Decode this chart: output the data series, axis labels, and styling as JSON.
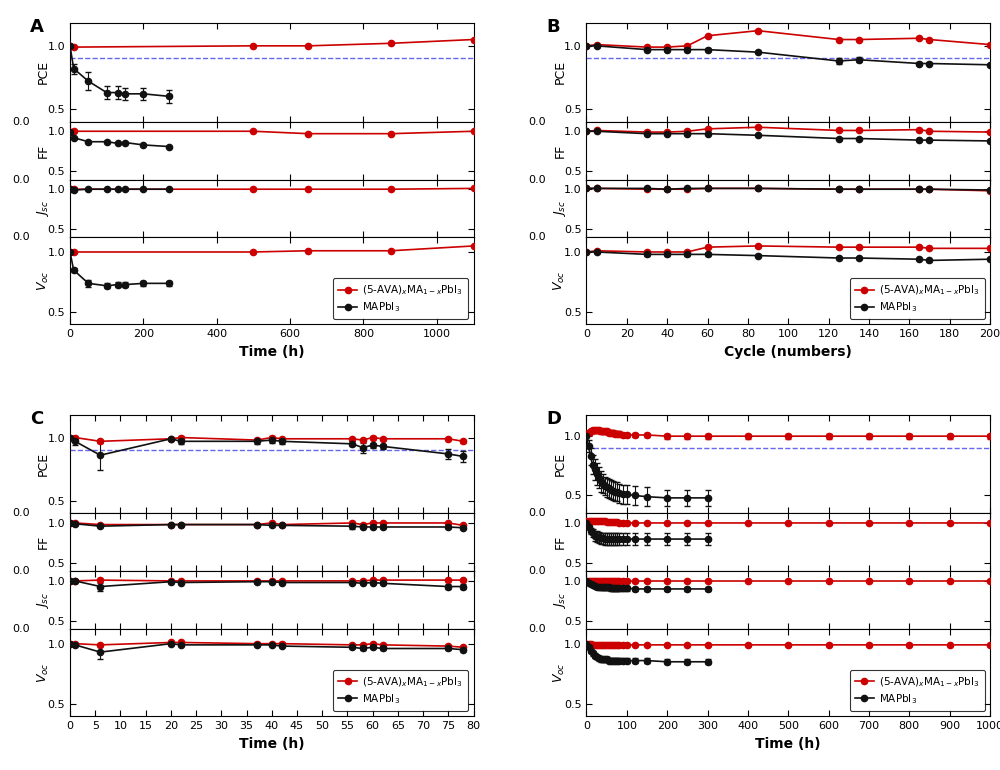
{
  "panel_A": {
    "xlabel": "Time (h)",
    "xlim": [
      0,
      1100
    ],
    "xticks": [
      0,
      200,
      400,
      600,
      800,
      1000
    ],
    "red_PCE_x": [
      0,
      10,
      500,
      650,
      875,
      1100
    ],
    "red_PCE_y": [
      1.0,
      0.99,
      1.0,
      1.0,
      1.02,
      1.05
    ],
    "black_PCE_x": [
      0,
      10,
      50,
      100,
      130,
      150,
      200,
      270
    ],
    "black_PCE_y": [
      1.0,
      0.82,
      0.72,
      0.63,
      0.63,
      0.62,
      0.62,
      0.6
    ],
    "black_PCE_err": [
      0.0,
      0.04,
      0.07,
      0.05,
      0.05,
      0.05,
      0.05,
      0.05
    ],
    "red_FF_x": [
      0,
      10,
      500,
      650,
      875,
      1100
    ],
    "red_FF_y": [
      0.99,
      1.0,
      1.0,
      0.97,
      0.97,
      1.0
    ],
    "red_FF_err": [
      0.01,
      0.01,
      0.0,
      0.0,
      0.0,
      0.0
    ],
    "black_FF_x": [
      0,
      10,
      50,
      100,
      130,
      150,
      200,
      270
    ],
    "black_FF_y": [
      0.99,
      0.92,
      0.87,
      0.87,
      0.85,
      0.86,
      0.83,
      0.81
    ],
    "black_FF_err": [
      0.01,
      0.01,
      0.01,
      0.01,
      0.01,
      0.01,
      0.01,
      0.01
    ],
    "red_Jsc_x": [
      0,
      10,
      500,
      650,
      875,
      1100
    ],
    "red_Jsc_y": [
      1.0,
      1.0,
      1.0,
      1.0,
      1.0,
      1.01
    ],
    "black_Jsc_x": [
      0,
      10,
      50,
      100,
      130,
      150,
      200,
      270
    ],
    "black_Jsc_y": [
      1.0,
      0.99,
      1.0,
      1.0,
      1.0,
      1.0,
      1.0,
      1.0
    ],
    "black_Jsc_err": [
      0.005,
      0.005,
      0.005,
      0.005,
      0.005,
      0.005,
      0.005,
      0.005
    ],
    "red_Voc_x": [
      0,
      10,
      500,
      650,
      875,
      1100
    ],
    "red_Voc_y": [
      1.0,
      1.0,
      1.0,
      1.01,
      1.01,
      1.05
    ],
    "black_Voc_x": [
      0,
      10,
      50,
      100,
      130,
      150,
      200,
      270
    ],
    "black_Voc_y": [
      1.0,
      0.85,
      0.74,
      0.72,
      0.73,
      0.73,
      0.74,
      0.74
    ],
    "black_Voc_err": [
      0.01,
      0.02,
      0.03,
      0.02,
      0.02,
      0.02,
      0.02,
      0.02
    ]
  },
  "panel_B": {
    "xlabel": "Cycle (numbers)",
    "xlim": [
      0,
      200
    ],
    "xticks": [
      0,
      20,
      40,
      60,
      80,
      100,
      120,
      140,
      160,
      180,
      200
    ],
    "red_PCE_x": [
      0,
      5,
      30,
      40,
      50,
      60,
      85,
      125,
      135,
      165,
      170,
      200
    ],
    "red_PCE_y": [
      1.0,
      1.01,
      0.99,
      0.99,
      1.0,
      1.08,
      1.12,
      1.05,
      1.05,
      1.06,
      1.05,
      1.01
    ],
    "black_PCE_x": [
      0,
      5,
      30,
      40,
      50,
      60,
      85,
      125,
      135,
      165,
      170,
      200
    ],
    "black_PCE_y": [
      1.0,
      1.0,
      0.97,
      0.97,
      0.97,
      0.97,
      0.95,
      0.88,
      0.89,
      0.86,
      0.86,
      0.85
    ],
    "black_PCE_err": [
      0.01,
      0.01,
      0.01,
      0.01,
      0.01,
      0.01,
      0.01,
      0.02,
      0.02,
      0.01,
      0.01,
      0.01
    ],
    "red_FF_x": [
      0,
      5,
      30,
      40,
      50,
      60,
      85,
      125,
      135,
      165,
      170,
      200
    ],
    "red_FF_y": [
      1.0,
      1.01,
      0.99,
      0.99,
      1.0,
      1.03,
      1.05,
      1.01,
      1.01,
      1.02,
      1.0,
      0.99
    ],
    "black_FF_x": [
      0,
      5,
      30,
      40,
      50,
      60,
      85,
      125,
      135,
      165,
      170,
      200
    ],
    "black_FF_y": [
      1.0,
      1.0,
      0.97,
      0.97,
      0.97,
      0.97,
      0.95,
      0.91,
      0.91,
      0.89,
      0.89,
      0.88
    ],
    "black_FF_err": [
      0.01,
      0.01,
      0.01,
      0.01,
      0.01,
      0.01,
      0.01,
      0.01,
      0.01,
      0.01,
      0.01,
      0.01
    ],
    "red_Jsc_x": [
      0,
      5,
      30,
      40,
      50,
      60,
      85,
      125,
      135,
      165,
      170,
      200
    ],
    "red_Jsc_y": [
      1.01,
      1.01,
      1.0,
      1.0,
      1.0,
      1.01,
      1.01,
      1.0,
      1.0,
      1.0,
      1.0,
      0.98
    ],
    "black_Jsc_x": [
      0,
      5,
      30,
      40,
      50,
      60,
      85,
      125,
      135,
      165,
      170,
      200
    ],
    "black_Jsc_y": [
      1.01,
      1.01,
      1.01,
      1.0,
      1.01,
      1.01,
      1.01,
      1.0,
      1.0,
      1.0,
      1.0,
      0.99
    ],
    "black_Jsc_err": [
      0.005,
      0.005,
      0.005,
      0.005,
      0.005,
      0.005,
      0.005,
      0.005,
      0.005,
      0.005,
      0.005,
      0.005
    ],
    "red_Voc_x": [
      0,
      5,
      30,
      40,
      50,
      60,
      85,
      125,
      135,
      165,
      170,
      200
    ],
    "red_Voc_y": [
      1.0,
      1.01,
      1.0,
      1.0,
      1.0,
      1.04,
      1.05,
      1.04,
      1.04,
      1.04,
      1.03,
      1.03
    ],
    "black_Voc_x": [
      0,
      5,
      30,
      40,
      50,
      60,
      85,
      125,
      135,
      165,
      170,
      200
    ],
    "black_Voc_y": [
      1.0,
      1.0,
      0.98,
      0.98,
      0.98,
      0.98,
      0.97,
      0.95,
      0.95,
      0.94,
      0.93,
      0.94
    ],
    "black_Voc_err": [
      0.01,
      0.01,
      0.01,
      0.01,
      0.01,
      0.01,
      0.01,
      0.01,
      0.01,
      0.01,
      0.01,
      0.01
    ]
  },
  "panel_C": {
    "xlabel": "Time (h)",
    "xlim": [
      0,
      80
    ],
    "xticks": [
      0,
      5,
      10,
      15,
      20,
      25,
      30,
      35,
      40,
      45,
      50,
      55,
      60,
      65,
      70,
      75,
      80
    ],
    "red_PCE_x": [
      0,
      1,
      6,
      20,
      22,
      37,
      40,
      42,
      56,
      58,
      60,
      62,
      75,
      78
    ],
    "red_PCE_y": [
      1.0,
      1.0,
      0.97,
      0.99,
      1.0,
      0.98,
      1.0,
      0.99,
      0.99,
      0.98,
      1.0,
      0.99,
      0.99,
      0.97
    ],
    "red_PCE_err": [
      0.01,
      0.01,
      0.01,
      0.01,
      0.01,
      0.01,
      0.01,
      0.01,
      0.01,
      0.01,
      0.01,
      0.01,
      0.01,
      0.01
    ],
    "black_PCE_x": [
      0,
      1,
      6,
      20,
      22,
      37,
      40,
      42,
      56,
      58,
      60,
      62,
      75,
      78
    ],
    "black_PCE_y": [
      1.0,
      0.97,
      0.86,
      0.99,
      0.97,
      0.97,
      0.98,
      0.97,
      0.95,
      0.92,
      0.94,
      0.93,
      0.87,
      0.85
    ],
    "black_PCE_err": [
      0.01,
      0.03,
      0.12,
      0.01,
      0.02,
      0.02,
      0.02,
      0.02,
      0.02,
      0.04,
      0.02,
      0.02,
      0.04,
      0.04
    ],
    "red_FF_x": [
      0,
      1,
      6,
      20,
      22,
      37,
      40,
      42,
      56,
      58,
      60,
      62,
      75,
      78
    ],
    "red_FF_y": [
      1.0,
      1.0,
      0.98,
      0.98,
      0.98,
      0.98,
      1.0,
      0.98,
      1.0,
      0.98,
      1.0,
      1.0,
      1.0,
      0.97
    ],
    "red_FF_err": [
      0.005,
      0.005,
      0.01,
      0.01,
      0.01,
      0.01,
      0.005,
      0.01,
      0.005,
      0.01,
      0.005,
      0.005,
      0.005,
      0.01
    ],
    "black_FF_x": [
      0,
      1,
      6,
      20,
      22,
      37,
      40,
      42,
      56,
      58,
      60,
      62,
      75,
      78
    ],
    "black_FF_y": [
      1.0,
      0.99,
      0.96,
      0.98,
      0.98,
      0.98,
      0.97,
      0.97,
      0.96,
      0.95,
      0.95,
      0.95,
      0.95,
      0.94
    ],
    "black_FF_err": [
      0.005,
      0.01,
      0.01,
      0.01,
      0.01,
      0.01,
      0.01,
      0.01,
      0.03,
      0.01,
      0.01,
      0.01,
      0.01,
      0.01
    ],
    "red_Jsc_x": [
      0,
      1,
      6,
      20,
      22,
      37,
      40,
      42,
      56,
      58,
      60,
      62,
      75,
      78
    ],
    "red_Jsc_y": [
      1.0,
      1.0,
      1.01,
      1.0,
      1.0,
      1.0,
      1.0,
      1.0,
      1.0,
      1.0,
      1.01,
      1.01,
      1.01,
      1.01
    ],
    "red_Jsc_err": [
      0.005,
      0.005,
      0.01,
      0.005,
      0.005,
      0.005,
      0.005,
      0.005,
      0.005,
      0.005,
      0.005,
      0.005,
      0.005,
      0.005
    ],
    "black_Jsc_x": [
      0,
      1,
      6,
      20,
      22,
      37,
      40,
      42,
      56,
      58,
      60,
      62,
      75,
      78
    ],
    "black_Jsc_y": [
      1.0,
      1.0,
      0.93,
      0.99,
      0.98,
      0.99,
      0.99,
      0.98,
      0.98,
      0.97,
      0.98,
      0.97,
      0.93,
      0.93
    ],
    "black_Jsc_err": [
      0.005,
      0.005,
      0.05,
      0.01,
      0.01,
      0.01,
      0.01,
      0.01,
      0.01,
      0.01,
      0.01,
      0.01,
      0.03,
      0.03
    ],
    "red_Voc_x": [
      0,
      1,
      6,
      20,
      22,
      37,
      40,
      42,
      56,
      58,
      60,
      62,
      75,
      78
    ],
    "red_Voc_y": [
      1.0,
      1.0,
      0.99,
      1.01,
      1.01,
      1.0,
      1.0,
      1.0,
      0.99,
      0.99,
      1.0,
      0.99,
      0.98,
      0.97
    ],
    "red_Voc_err": [
      0.005,
      0.005,
      0.01,
      0.01,
      0.01,
      0.01,
      0.005,
      0.01,
      0.005,
      0.01,
      0.005,
      0.005,
      0.005,
      0.01
    ],
    "black_Voc_x": [
      0,
      1,
      6,
      20,
      22,
      37,
      40,
      42,
      56,
      58,
      60,
      62,
      75,
      78
    ],
    "black_Voc_y": [
      1.0,
      0.99,
      0.93,
      1.0,
      0.99,
      0.99,
      0.99,
      0.98,
      0.97,
      0.96,
      0.97,
      0.96,
      0.96,
      0.95
    ],
    "black_Voc_err": [
      0.005,
      0.01,
      0.06,
      0.01,
      0.01,
      0.01,
      0.01,
      0.01,
      0.01,
      0.01,
      0.01,
      0.01,
      0.01,
      0.01
    ]
  },
  "panel_D": {
    "xlabel": "Time (h)",
    "xlim": [
      0,
      1000
    ],
    "xticks": [
      0,
      100,
      200,
      300,
      400,
      500,
      600,
      700,
      800,
      900,
      1000
    ],
    "red_PCE_x": [
      0,
      5,
      10,
      15,
      20,
      25,
      30,
      35,
      40,
      45,
      50,
      55,
      60,
      65,
      70,
      75,
      80,
      90,
      100,
      120,
      150,
      200,
      250,
      300,
      400,
      500,
      600,
      700,
      800,
      900,
      1000
    ],
    "red_PCE_y": [
      1.02,
      1.03,
      1.04,
      1.05,
      1.05,
      1.05,
      1.05,
      1.04,
      1.04,
      1.04,
      1.04,
      1.03,
      1.03,
      1.03,
      1.02,
      1.02,
      1.02,
      1.01,
      1.01,
      1.01,
      1.01,
      1.0,
      1.0,
      1.0,
      1.0,
      1.0,
      1.0,
      1.0,
      1.0,
      1.0,
      1.0
    ],
    "red_PCE_err": [
      0.02,
      0.02,
      0.02,
      0.02,
      0.02,
      0.02,
      0.02,
      0.02,
      0.02,
      0.02,
      0.02,
      0.02,
      0.02,
      0.02,
      0.02,
      0.02,
      0.02,
      0.02,
      0.02,
      0.02,
      0.02,
      0.02,
      0.02,
      0.02,
      0.02,
      0.02,
      0.02,
      0.02,
      0.02,
      0.02,
      0.02
    ],
    "black_PCE_x": [
      0,
      5,
      10,
      15,
      20,
      25,
      30,
      35,
      40,
      45,
      50,
      55,
      60,
      65,
      70,
      75,
      80,
      90,
      100,
      120,
      150,
      200,
      250,
      300
    ],
    "black_PCE_y": [
      1.0,
      0.92,
      0.83,
      0.76,
      0.72,
      0.68,
      0.65,
      0.62,
      0.6,
      0.58,
      0.57,
      0.56,
      0.55,
      0.54,
      0.53,
      0.53,
      0.52,
      0.51,
      0.51,
      0.5,
      0.49,
      0.48,
      0.48,
      0.48
    ],
    "black_PCE_err": [
      0.03,
      0.05,
      0.07,
      0.08,
      0.09,
      0.09,
      0.09,
      0.09,
      0.08,
      0.08,
      0.08,
      0.08,
      0.08,
      0.08,
      0.08,
      0.08,
      0.08,
      0.08,
      0.08,
      0.08,
      0.08,
      0.07,
      0.07,
      0.07
    ],
    "red_FF_x": [
      0,
      5,
      10,
      15,
      20,
      25,
      30,
      35,
      40,
      45,
      50,
      55,
      60,
      65,
      70,
      75,
      80,
      90,
      100,
      120,
      150,
      200,
      250,
      300,
      400,
      500,
      600,
      700,
      800,
      900,
      1000
    ],
    "red_FF_y": [
      1.02,
      1.02,
      1.03,
      1.03,
      1.03,
      1.03,
      1.02,
      1.02,
      1.02,
      1.02,
      1.01,
      1.01,
      1.01,
      1.01,
      1.01,
      1.01,
      1.0,
      1.0,
      1.0,
      1.0,
      1.0,
      1.0,
      1.0,
      1.0,
      1.0,
      1.0,
      1.0,
      1.0,
      1.0,
      1.0,
      1.0
    ],
    "red_FF_err": [
      0.01,
      0.01,
      0.01,
      0.01,
      0.01,
      0.01,
      0.01,
      0.01,
      0.01,
      0.01,
      0.01,
      0.01,
      0.01,
      0.01,
      0.01,
      0.01,
      0.01,
      0.01,
      0.01,
      0.01,
      0.01,
      0.01,
      0.01,
      0.01,
      0.01,
      0.01,
      0.01,
      0.01,
      0.01,
      0.01,
      0.01
    ],
    "black_FF_x": [
      0,
      5,
      10,
      15,
      20,
      25,
      30,
      35,
      40,
      45,
      50,
      55,
      60,
      65,
      70,
      75,
      80,
      90,
      100,
      120,
      150,
      200,
      250,
      300
    ],
    "black_FF_y": [
      1.0,
      0.95,
      0.9,
      0.87,
      0.84,
      0.83,
      0.82,
      0.81,
      0.81,
      0.8,
      0.8,
      0.8,
      0.8,
      0.8,
      0.8,
      0.8,
      0.8,
      0.8,
      0.8,
      0.8,
      0.8,
      0.8,
      0.8,
      0.8
    ],
    "black_FF_err": [
      0.02,
      0.03,
      0.04,
      0.05,
      0.06,
      0.07,
      0.07,
      0.07,
      0.07,
      0.07,
      0.07,
      0.07,
      0.07,
      0.07,
      0.07,
      0.07,
      0.07,
      0.07,
      0.07,
      0.07,
      0.07,
      0.07,
      0.07,
      0.07
    ],
    "red_Jsc_x": [
      0,
      5,
      10,
      15,
      20,
      25,
      30,
      35,
      40,
      45,
      50,
      55,
      60,
      65,
      70,
      75,
      80,
      90,
      100,
      120,
      150,
      200,
      250,
      300,
      400,
      500,
      600,
      700,
      800,
      900,
      1000
    ],
    "red_Jsc_y": [
      1.0,
      1.0,
      1.0,
      1.0,
      1.0,
      1.0,
      1.0,
      1.0,
      1.0,
      1.0,
      1.0,
      1.0,
      1.0,
      1.0,
      1.0,
      1.0,
      1.0,
      1.0,
      1.0,
      1.0,
      1.0,
      1.0,
      1.0,
      1.0,
      1.0,
      1.0,
      1.0,
      1.0,
      1.0,
      1.0,
      1.0
    ],
    "red_Jsc_err": [
      0.01,
      0.01,
      0.01,
      0.01,
      0.01,
      0.01,
      0.01,
      0.01,
      0.01,
      0.01,
      0.01,
      0.01,
      0.01,
      0.01,
      0.01,
      0.01,
      0.01,
      0.01,
      0.01,
      0.01,
      0.01,
      0.01,
      0.01,
      0.01,
      0.01,
      0.01,
      0.01,
      0.01,
      0.01,
      0.01,
      0.01
    ],
    "black_Jsc_x": [
      0,
      5,
      10,
      15,
      20,
      25,
      30,
      35,
      40,
      45,
      50,
      55,
      60,
      65,
      70,
      75,
      80,
      90,
      100,
      120,
      150,
      200,
      250,
      300
    ],
    "black_Jsc_y": [
      1.0,
      0.98,
      0.96,
      0.95,
      0.94,
      0.93,
      0.93,
      0.92,
      0.92,
      0.92,
      0.92,
      0.92,
      0.91,
      0.91,
      0.91,
      0.91,
      0.91,
      0.91,
      0.91,
      0.9,
      0.9,
      0.9,
      0.9,
      0.9
    ],
    "black_Jsc_err": [
      0.01,
      0.02,
      0.02,
      0.03,
      0.03,
      0.03,
      0.03,
      0.03,
      0.03,
      0.03,
      0.03,
      0.03,
      0.03,
      0.03,
      0.03,
      0.03,
      0.03,
      0.03,
      0.03,
      0.03,
      0.03,
      0.03,
      0.03,
      0.03
    ],
    "red_Voc_x": [
      0,
      5,
      10,
      15,
      20,
      25,
      30,
      35,
      40,
      45,
      50,
      55,
      60,
      65,
      70,
      75,
      80,
      90,
      100,
      120,
      150,
      200,
      250,
      300,
      400,
      500,
      600,
      700,
      800,
      900,
      1000
    ],
    "red_Voc_y": [
      1.0,
      1.0,
      1.0,
      0.99,
      0.99,
      0.99,
      0.99,
      0.99,
      0.99,
      0.99,
      0.99,
      0.99,
      0.99,
      0.99,
      0.99,
      0.99,
      0.99,
      0.99,
      0.99,
      0.99,
      0.99,
      0.99,
      0.99,
      0.99,
      0.99,
      0.99,
      0.99,
      0.99,
      0.99,
      0.99,
      0.99
    ],
    "red_Voc_err": [
      0.01,
      0.01,
      0.01,
      0.01,
      0.01,
      0.01,
      0.01,
      0.01,
      0.01,
      0.01,
      0.01,
      0.01,
      0.01,
      0.01,
      0.01,
      0.01,
      0.01,
      0.01,
      0.01,
      0.01,
      0.01,
      0.01,
      0.01,
      0.01,
      0.01,
      0.01,
      0.01,
      0.01,
      0.01,
      0.01,
      0.01
    ],
    "black_Voc_x": [
      0,
      5,
      10,
      15,
      20,
      25,
      30,
      35,
      40,
      45,
      50,
      55,
      60,
      65,
      70,
      75,
      80,
      90,
      100,
      120,
      150,
      200,
      250,
      300
    ],
    "black_Voc_y": [
      1.0,
      0.97,
      0.94,
      0.92,
      0.9,
      0.89,
      0.88,
      0.87,
      0.87,
      0.87,
      0.87,
      0.86,
      0.86,
      0.86,
      0.86,
      0.86,
      0.86,
      0.86,
      0.86,
      0.86,
      0.86,
      0.85,
      0.85,
      0.85
    ],
    "black_Voc_err": [
      0.01,
      0.01,
      0.02,
      0.02,
      0.02,
      0.02,
      0.02,
      0.02,
      0.02,
      0.02,
      0.02,
      0.02,
      0.02,
      0.02,
      0.02,
      0.02,
      0.02,
      0.02,
      0.02,
      0.02,
      0.02,
      0.02,
      0.02,
      0.02
    ]
  },
  "red_color": "#CC0000",
  "black_color": "#111111",
  "dashed_line_color": "#6666EE",
  "legend_label_red": "(5-AVA)$_x$MA$_{1-x}$PbI$_3$",
  "legend_label_black": "MAPbI$_3$",
  "ylabel_PCE": "PCE",
  "ylabel_FF": "FF",
  "ylabel_Jsc": "$J_{sc}$",
  "ylabel_Voc": "$V_{oc}$",
  "panel_labels": [
    "A",
    "B",
    "C",
    "D"
  ]
}
